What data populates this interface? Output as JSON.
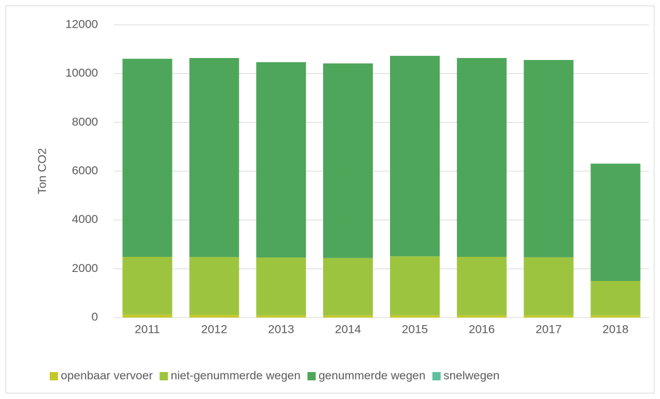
{
  "chart_data": {
    "type": "stacked_bar",
    "y_label": "Ton CO2",
    "categories": [
      "2011",
      "2012",
      "2013",
      "2014",
      "2015",
      "2016",
      "2017",
      "2018"
    ],
    "series": [
      {
        "name": "openbaar vervoer",
        "color": "#c5c82a",
        "values": [
          120,
          110,
          90,
          90,
          90,
          90,
          90,
          90
        ]
      },
      {
        "name": "niet-genummerde wegen",
        "color": "#9dc43f",
        "values": [
          2370,
          2370,
          2370,
          2350,
          2420,
          2400,
          2380,
          1410
        ]
      },
      {
        "name": "genummerde wegen",
        "color": "#4ea65a",
        "values": [
          8120,
          8160,
          8010,
          7980,
          8220,
          8150,
          8090,
          4810
        ]
      },
      {
        "name": "snelwegen",
        "color": "#5fbf9f",
        "values": [
          0,
          0,
          0,
          0,
          0,
          0,
          0,
          0
        ]
      }
    ],
    "ylim": [
      0,
      12000
    ],
    "yticks": [
      0,
      2000,
      4000,
      6000,
      8000,
      10000,
      12000
    ],
    "grid": true,
    "legend": "bottom"
  }
}
